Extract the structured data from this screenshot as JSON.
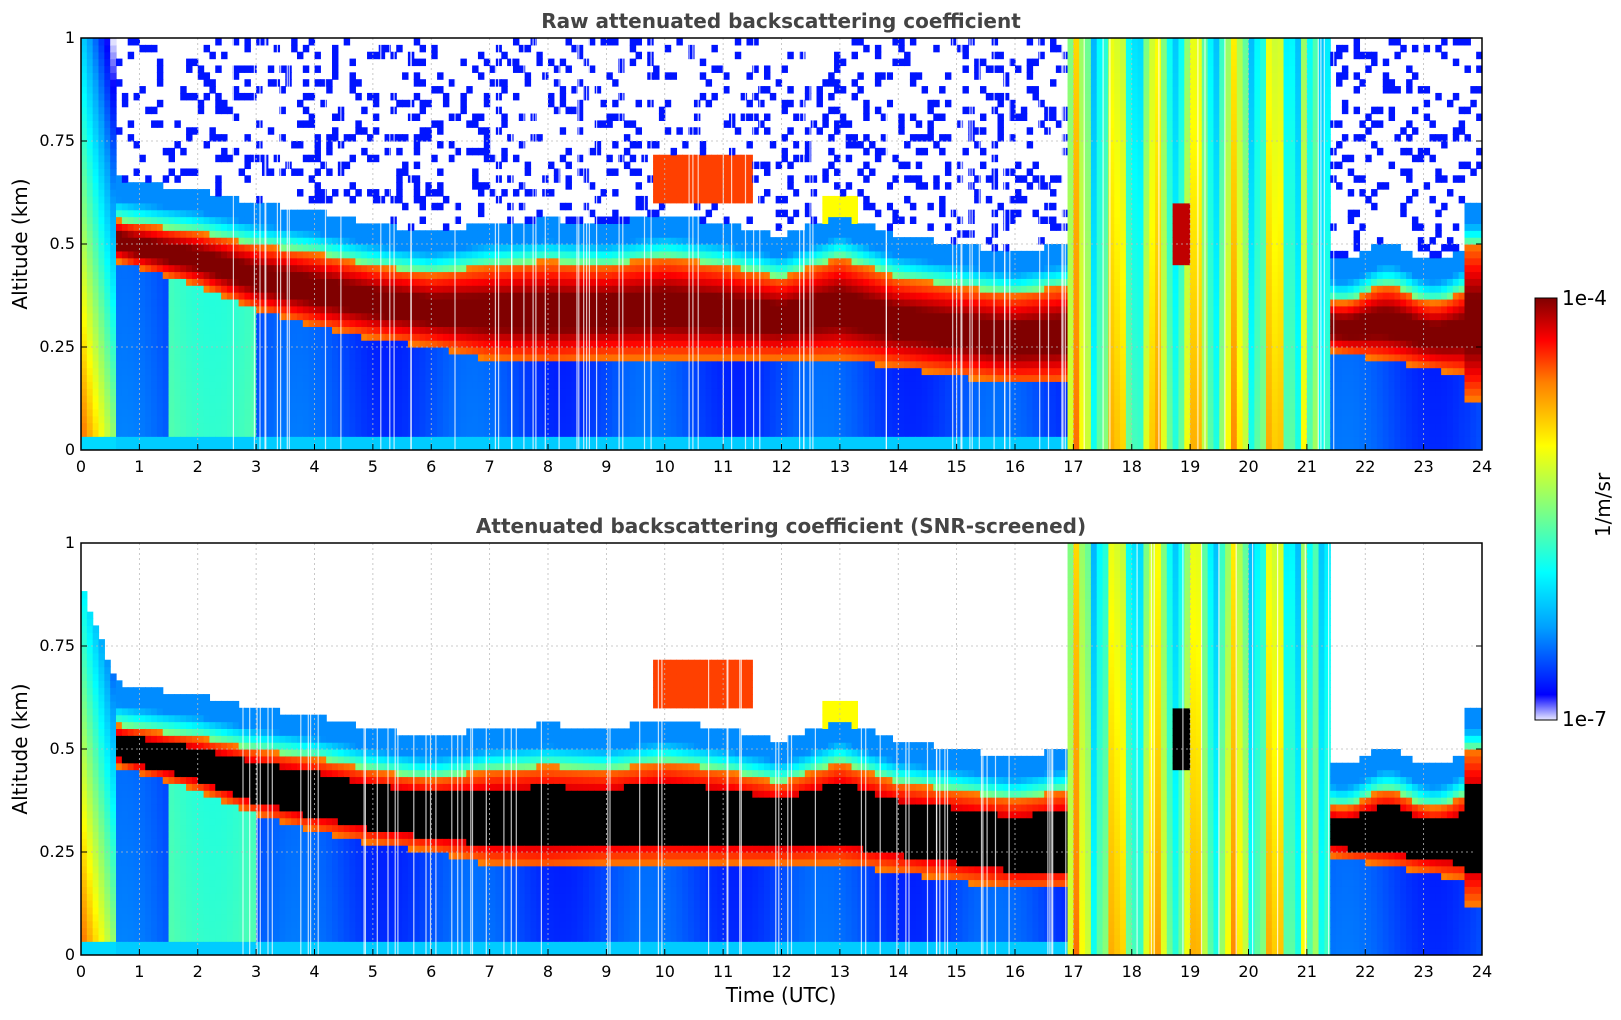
{
  "chart_data": [
    {
      "type": "heatmap",
      "title": "Raw attenuated backscattering coefficient",
      "xlabel": "",
      "ylabel": "Altitude (km)",
      "xlim": [
        0,
        24
      ],
      "ylim": [
        0,
        1
      ],
      "x_ticks": [
        "0",
        "1",
        "2",
        "3",
        "4",
        "5",
        "6",
        "7",
        "8",
        "9",
        "10",
        "11",
        "12",
        "13",
        "14",
        "15",
        "16",
        "17",
        "18",
        "19",
        "20",
        "21",
        "22",
        "23",
        "24"
      ],
      "y_ticks": [
        "0",
        "0.25",
        "0.5",
        "0.75",
        "1"
      ],
      "grid": true,
      "features": {
        "layer_top_km": [
          [
            0.6,
            0.56
          ],
          [
            1,
            0.55
          ],
          [
            2,
            0.53
          ],
          [
            3,
            0.5
          ],
          [
            4,
            0.48
          ],
          [
            5,
            0.45
          ],
          [
            6,
            0.43
          ],
          [
            7,
            0.45
          ],
          [
            8,
            0.46
          ],
          [
            9,
            0.45
          ],
          [
            10,
            0.47
          ],
          [
            11,
            0.45
          ],
          [
            12,
            0.42
          ],
          [
            13,
            0.47
          ],
          [
            14,
            0.42
          ],
          [
            15,
            0.4
          ],
          [
            16,
            0.38
          ],
          [
            16.8,
            0.4
          ]
        ],
        "layer_base_km": [
          [
            0.6,
            0.46
          ],
          [
            1,
            0.44
          ],
          [
            2,
            0.4
          ],
          [
            3,
            0.34
          ],
          [
            4,
            0.3
          ],
          [
            5,
            0.27
          ],
          [
            6,
            0.25
          ],
          [
            7,
            0.22
          ],
          [
            8,
            0.21
          ],
          [
            9,
            0.22
          ],
          [
            10,
            0.22
          ],
          [
            11,
            0.22
          ],
          [
            12,
            0.22
          ],
          [
            13,
            0.22
          ],
          [
            14,
            0.2
          ],
          [
            15,
            0.18
          ],
          [
            16,
            0.16
          ],
          [
            16.8,
            0.16
          ]
        ],
        "clear_sky_after_17": false,
        "cloud_block_hours": [
          [
            17.0,
            21.0
          ]
        ],
        "second_layer_hours": [
          21.1,
          24.0
        ]
      }
    },
    {
      "type": "heatmap",
      "title": "Attenuated backscattering coefficient (SNR-screened)",
      "xlabel": "Time (UTC)",
      "ylabel": "Altitude (km)",
      "xlim": [
        0,
        24
      ],
      "ylim": [
        0,
        1
      ],
      "x_ticks": [
        "0",
        "1",
        "2",
        "3",
        "4",
        "5",
        "6",
        "7",
        "8",
        "9",
        "10",
        "11",
        "12",
        "13",
        "14",
        "15",
        "16",
        "17",
        "18",
        "19",
        "20",
        "21",
        "22",
        "23",
        "24"
      ],
      "y_ticks": [
        "0",
        "0.25",
        "0.5",
        "0.75",
        "1"
      ],
      "grid": true,
      "saturated_color": "#000000"
    }
  ],
  "colorbar": {
    "label": "1/m/sr",
    "max_label": "1e-4",
    "min_label": "1e-7",
    "colormap": "jet",
    "stops": [
      "#e8e8ff",
      "#0000ff",
      "#00a0ff",
      "#00ffff",
      "#80ff80",
      "#ffff00",
      "#ff8000",
      "#ff0000",
      "#800000"
    ]
  }
}
